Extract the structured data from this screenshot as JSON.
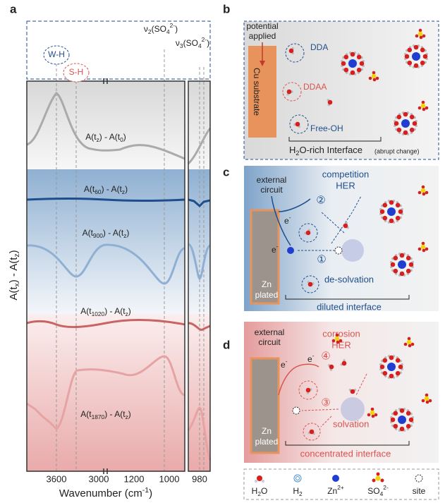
{
  "panel_a": {
    "label": "a",
    "annotations": {
      "wh": "W-H",
      "sh": "S-H",
      "nu2": [
        "ν",
        {
          "sub": "2"
        },
        "(SO",
        {
          "sub": "4"
        },
        {
          "sup": "2-"
        },
        ")"
      ],
      "nu3": [
        "ν",
        {
          "sub": "3"
        },
        "(SO",
        {
          "sub": "4"
        },
        {
          "sup": "2-"
        },
        ")"
      ]
    },
    "curve_labels": [
      [
        "A(t",
        {
          "sub": "z"
        },
        ") - A(t",
        {
          "sub": "0"
        },
        ")"
      ],
      [
        "A(t",
        {
          "sub": "60"
        },
        ") - A(t",
        {
          "sub": "z"
        },
        ")"
      ],
      [
        "A(t",
        {
          "sub": "900"
        },
        ") - A(t",
        {
          "sub": "z"
        },
        ")"
      ],
      [
        "A(t",
        {
          "sub": "1020"
        },
        ") - A(t",
        {
          "sub": "z"
        },
        ")"
      ],
      [
        "A(t",
        {
          "sub": "1870"
        },
        ") - A(t",
        {
          "sub": "z"
        },
        ")"
      ]
    ],
    "xticks": [
      "3600",
      "3000",
      "1200",
      "1000",
      "980"
    ],
    "xlabel": [
      "Wavenumber (cm",
      {
        "sup": "-1"
      },
      ")"
    ],
    "ylabel": [
      "A(t",
      {
        "sub": "x"
      },
      ") - A(t",
      {
        "sub": "z"
      },
      ")"
    ]
  },
  "panel_b": {
    "label": "b",
    "potential": "potential",
    "applied": "applied",
    "substrate": "Cu substrate",
    "dda": "DDA",
    "ddaa": "DDAA",
    "free": "Free-OH",
    "interface": [
      "H",
      {
        "sub": "2"
      },
      "O-rich Interface"
    ],
    "note": "(abrupt change)"
  },
  "panel_c": {
    "label": "c",
    "external": "external",
    "circuit": "circuit",
    "competition": "competition",
    "her": "HER",
    "e1": [
      "e",
      {
        "sup": "-"
      }
    ],
    "e2": [
      "e",
      {
        "sup": "-"
      }
    ],
    "step2": "②",
    "step1": "①",
    "process": "de-solvation",
    "zn": "Zn",
    "plated": "plated",
    "interface": "diluted interface"
  },
  "panel_d": {
    "label": "d",
    "external": "external",
    "circuit": "circuit",
    "corrosion": "corrosion",
    "her": "HER",
    "e1": [
      "e",
      {
        "sup": "-"
      }
    ],
    "e2": [
      "e",
      {
        "sup": "-"
      }
    ],
    "step4": "④",
    "step3": "③",
    "process": "solvation",
    "zn": "Zn",
    "plated": "plated",
    "interface": "concentrated interface"
  },
  "legend": {
    "h2o": [
      "H",
      {
        "sub": "2"
      },
      "O"
    ],
    "h2": [
      "H",
      {
        "sub": "2"
      }
    ],
    "zn": [
      "Zn",
      {
        "sup": "2+"
      }
    ],
    "so4": [
      "SO",
      {
        "sub": "4"
      },
      {
        "sup": "2-"
      }
    ],
    "site": "site"
  }
}
